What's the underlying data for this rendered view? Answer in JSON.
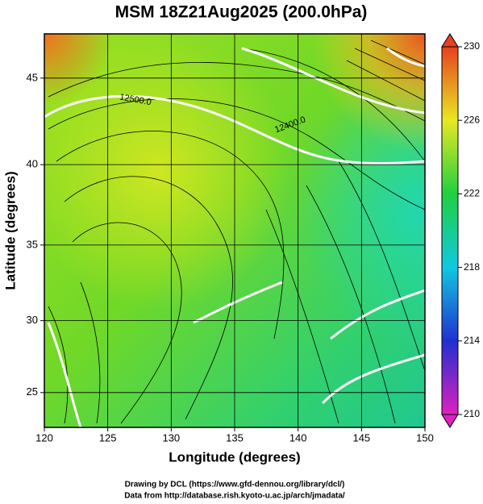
{
  "title": "MSM 18Z21Aug2025 (200.0hPa)",
  "x_axis": {
    "label": "Longitude (degrees)",
    "lim": [
      120,
      150
    ],
    "ticks": [
      120,
      125,
      130,
      135,
      140,
      145,
      150
    ]
  },
  "y_axis": {
    "label": "Latitude  (degrees)",
    "lim": [
      22.5,
      47.4
    ],
    "ticks": [
      25,
      30,
      35,
      40,
      45
    ],
    "projection": "mercator"
  },
  "colorbar": {
    "lim": [
      210,
      230
    ],
    "ticks": [
      210,
      214,
      218,
      222,
      226,
      230
    ]
  },
  "contour_labels": [
    "12500.0",
    "12400.0"
  ],
  "footer": [
    "Drawing by DCL (https://www.gfd-dennou.org/library/dcl/)",
    "Data from http://database.rish.kyoto-u.ac.jp/arch/jmadata/"
  ]
}
